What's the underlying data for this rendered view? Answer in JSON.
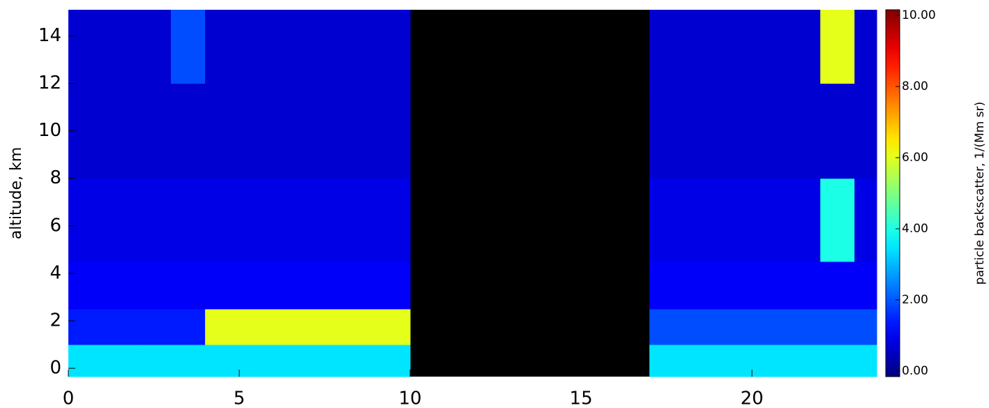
{
  "chart_data": {
    "type": "heatmap",
    "ylabel": "altitude, km",
    "colorbar_label": "particle backscatter, 1/(Mm sr)",
    "colormap": "jet",
    "xlim": [
      0,
      23.65
    ],
    "ylim": [
      -0.35,
      15.1
    ],
    "xticks": [
      0,
      5,
      10,
      15,
      20
    ],
    "yticks": [
      0,
      2,
      4,
      6,
      8,
      10,
      12,
      14
    ],
    "clim": [
      0,
      10
    ],
    "cticks": [
      {
        "value": 0,
        "label": "0.00"
      },
      {
        "value": 2,
        "label": "2.00"
      },
      {
        "value": 4,
        "label": "4.00"
      },
      {
        "value": 6,
        "label": "6.00"
      },
      {
        "value": 8,
        "label": "8.00"
      },
      {
        "value": 10,
        "label": "10.00"
      }
    ],
    "x_bins": [
      0,
      1,
      2,
      3,
      4,
      5,
      6,
      7,
      8,
      9,
      10,
      11,
      12,
      13,
      14,
      15,
      16,
      17,
      18,
      19,
      20,
      21,
      22,
      23,
      23.65
    ],
    "y_bins": [
      -0.35,
      1,
      2.5,
      4.5,
      8,
      12,
      15.1
    ],
    "z": [
      [
        3.5,
        3.5,
        3.5,
        3.5,
        3.5,
        3.5,
        3.5,
        3.5,
        3.5,
        3.5,
        null,
        null,
        null,
        null,
        null,
        null,
        null,
        3.5,
        3.5,
        3.5,
        3.5,
        3.5,
        3.5,
        3.5
      ],
      [
        1.5,
        1.5,
        1.5,
        1.5,
        6,
        6,
        6,
        6,
        6,
        6,
        null,
        null,
        null,
        null,
        null,
        null,
        null,
        2,
        2,
        2,
        2,
        2,
        2,
        2
      ],
      [
        1.2,
        1.2,
        1.2,
        1.2,
        1.2,
        1.2,
        1.2,
        1.2,
        1.2,
        1.2,
        null,
        null,
        null,
        null,
        null,
        null,
        null,
        1.2,
        1.2,
        1.2,
        1.2,
        1.2,
        1.2,
        1.2
      ],
      [
        1,
        1,
        1,
        1,
        1,
        1,
        1,
        1,
        1,
        1,
        null,
        null,
        null,
        null,
        null,
        null,
        null,
        1,
        1,
        1,
        1,
        1,
        4,
        1
      ],
      [
        0.8,
        0.8,
        0.8,
        0.8,
        0.8,
        0.8,
        0.8,
        0.8,
        0.8,
        0.8,
        null,
        null,
        null,
        null,
        null,
        null,
        null,
        0.8,
        0.8,
        0.8,
        0.8,
        0.8,
        0.8,
        0.8
      ],
      [
        0.8,
        0.8,
        0.8,
        2,
        0.8,
        0.8,
        0.8,
        0.8,
        0.8,
        0.8,
        null,
        null,
        null,
        null,
        null,
        null,
        null,
        0.8,
        0.8,
        0.8,
        0.8,
        0.8,
        6,
        0.8
      ]
    ]
  }
}
